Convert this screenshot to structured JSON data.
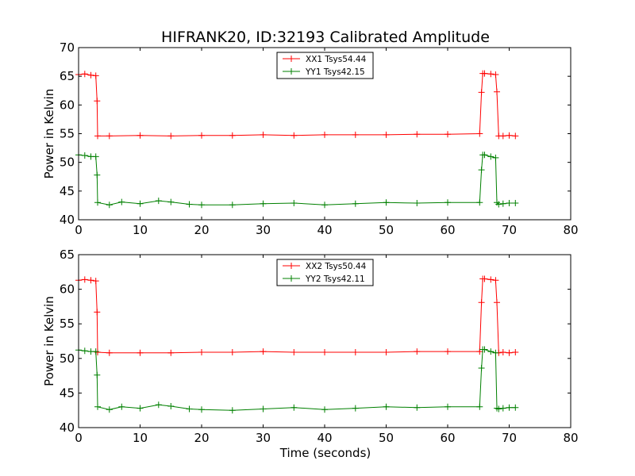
{
  "chart_data": [
    {
      "type": "line",
      "title": "HIFRANK20, ID:32193 Calibrated Amplitude",
      "xlabel": "",
      "ylabel": "Power in Kelvin",
      "xlim": [
        0,
        80
      ],
      "ylim": [
        40,
        70
      ],
      "xticks": [
        "0",
        "10",
        "20",
        "30",
        "40",
        "50",
        "60",
        "70",
        "80"
      ],
      "yticks": [
        "40",
        "45",
        "50",
        "55",
        "60",
        "65",
        "70"
      ],
      "legend_position": "upper-center",
      "grid": false,
      "series": [
        {
          "name": "XX1 Tsys54.44",
          "color": "#ff0000",
          "marker": "plus",
          "x": [
            0,
            1,
            2,
            2.8,
            3.0,
            3.1,
            5,
            10,
            15,
            20,
            25,
            30,
            35,
            40,
            45,
            50,
            55,
            60,
            65.2,
            65.5,
            65.7,
            66,
            67,
            67.8,
            68.0,
            68.3,
            69,
            70,
            71
          ],
          "values": [
            65.3,
            65.4,
            65.2,
            65.1,
            60.7,
            54.6,
            54.6,
            54.7,
            54.6,
            54.7,
            54.7,
            54.8,
            54.7,
            54.8,
            54.8,
            54.8,
            54.9,
            54.9,
            55.0,
            62.2,
            65.5,
            65.5,
            65.4,
            65.3,
            62.3,
            54.6,
            54.6,
            54.7,
            54.6
          ]
        },
        {
          "name": "YY1 Tsys42.15",
          "color": "#008000",
          "marker": "plus",
          "x": [
            0,
            1,
            2,
            2.8,
            3.0,
            3.1,
            5,
            7,
            10,
            13,
            15,
            18,
            20,
            25,
            30,
            35,
            40,
            45,
            50,
            55,
            60,
            65.2,
            65.5,
            65.7,
            66,
            67,
            67.8,
            68.0,
            68.3,
            69,
            70,
            71
          ],
          "values": [
            51.3,
            51.2,
            51.0,
            51.0,
            47.8,
            43.0,
            42.6,
            43.1,
            42.8,
            43.3,
            43.1,
            42.7,
            42.6,
            42.6,
            42.8,
            42.9,
            42.6,
            42.8,
            43.0,
            42.9,
            43.0,
            43.0,
            48.7,
            51.3,
            51.3,
            51.0,
            50.8,
            43.0,
            42.7,
            42.8,
            42.9,
            42.9
          ]
        }
      ]
    },
    {
      "type": "line",
      "title": "",
      "xlabel": "Time (seconds)",
      "ylabel": "Power in Kelvin",
      "xlim": [
        0,
        80
      ],
      "ylim": [
        40,
        65
      ],
      "xticks": [
        "0",
        "10",
        "20",
        "30",
        "40",
        "50",
        "60",
        "70",
        "80"
      ],
      "yticks": [
        "40",
        "45",
        "50",
        "55",
        "60",
        "65"
      ],
      "legend_position": "upper-center",
      "grid": false,
      "series": [
        {
          "name": "XX2 Tsys50.44",
          "color": "#ff0000",
          "marker": "plus",
          "x": [
            0,
            1,
            2,
            2.8,
            3.0,
            3.1,
            5,
            10,
            15,
            20,
            25,
            30,
            35,
            40,
            45,
            50,
            55,
            60,
            65.2,
            65.5,
            65.7,
            66,
            67,
            67.8,
            68.0,
            68.3,
            69,
            70,
            71
          ],
          "values": [
            61.3,
            61.4,
            61.3,
            61.2,
            56.7,
            50.9,
            50.8,
            50.8,
            50.8,
            50.9,
            50.9,
            51.0,
            50.9,
            50.9,
            50.9,
            50.9,
            51.0,
            51.0,
            51.0,
            58.1,
            61.5,
            61.5,
            61.4,
            61.3,
            58.1,
            50.8,
            50.9,
            50.8,
            50.9
          ]
        },
        {
          "name": "YY2 Tsys42.11",
          "color": "#008000",
          "marker": "plus",
          "x": [
            0,
            1,
            2,
            2.8,
            3.0,
            3.1,
            5,
            7,
            10,
            13,
            15,
            18,
            20,
            25,
            30,
            35,
            40,
            45,
            50,
            55,
            60,
            65.2,
            65.5,
            65.7,
            66,
            67,
            67.8,
            68.0,
            68.3,
            69,
            70,
            71
          ],
          "values": [
            51.2,
            51.1,
            51.0,
            51.0,
            47.6,
            43.0,
            42.6,
            43.0,
            42.8,
            43.3,
            43.1,
            42.7,
            42.6,
            42.5,
            42.7,
            42.9,
            42.6,
            42.8,
            43.0,
            42.9,
            43.0,
            43.0,
            48.6,
            51.3,
            51.3,
            51.0,
            50.8,
            42.8,
            42.7,
            42.8,
            42.9,
            42.9
          ]
        }
      ]
    }
  ]
}
